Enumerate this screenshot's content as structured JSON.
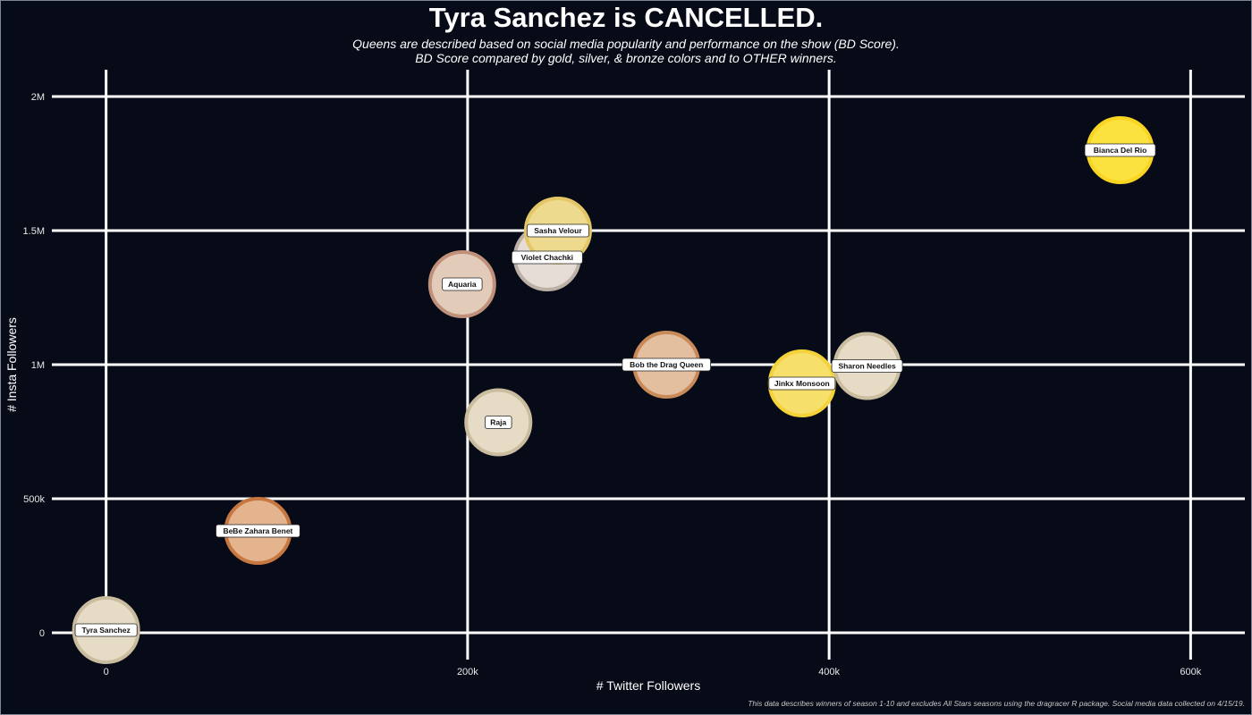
{
  "header": {
    "title": "Tyra Sanchez is CANCELLED.",
    "subtitle_line1": "Queens are described based on social media popularity and performance on the show (BD Score).",
    "subtitle_line2": "BD Score compared by gold, silver, & bronze colors and to OTHER winners."
  },
  "caption": "This data describes winners of season 1-10 and excludes All Stars seasons using the dragracer R package. Social media data collected on 4/15/19.",
  "colors": {
    "background": "#070a17",
    "grid": "#ffffff",
    "label_bg": "#ffffff",
    "label_text": "#111111"
  },
  "chart_data": {
    "type": "scatter",
    "title": "Tyra Sanchez is CANCELLED.",
    "xlabel": "# Twitter Followers",
    "ylabel": "# Insta Followers",
    "xlim": [
      -30000,
      630000
    ],
    "ylim": [
      -100000,
      2100000
    ],
    "xticks": [
      0,
      200000,
      400000,
      600000
    ],
    "xtick_labels": [
      "0",
      "200k",
      "400k",
      "600k"
    ],
    "yticks": [
      0,
      500000,
      1000000,
      1500000,
      2000000
    ],
    "ytick_labels": [
      "0",
      "500k",
      "1M",
      "1.5M",
      "2M"
    ],
    "grid": true,
    "points": [
      {
        "name": "Tyra Sanchez",
        "x": 0,
        "y": 10000,
        "fill": "#e6dcc6",
        "stroke": "#c9bc9f"
      },
      {
        "name": "BeBe Zahara Benet",
        "x": 84000,
        "y": 380000,
        "fill": "#e3b48e",
        "stroke": "#c7773f"
      },
      {
        "name": "Raja",
        "x": 217000,
        "y": 785000,
        "fill": "#e6dcc6",
        "stroke": "#c9bc9f"
      },
      {
        "name": "Aquaria",
        "x": 197000,
        "y": 1300000,
        "fill": "#e3cbb9",
        "stroke": "#c0917a"
      },
      {
        "name": "Violet Chachki",
        "x": 244000,
        "y": 1400000,
        "fill": "#e5dcd6",
        "stroke": "#bdb0a6"
      },
      {
        "name": "Sasha Velour",
        "x": 250000,
        "y": 1500000,
        "fill": "#eeda8e",
        "stroke": "#e3c766"
      },
      {
        "name": "Bob the Drag Queen",
        "x": 310000,
        "y": 1000000,
        "fill": "#e4bf9f",
        "stroke": "#c98a5a"
      },
      {
        "name": "Jinkx Monsoon",
        "x": 385000,
        "y": 930000,
        "fill": "#f6df6a",
        "stroke": "#f3d23a"
      },
      {
        "name": "Sharon Needles",
        "x": 421000,
        "y": 995000,
        "fill": "#e6dcc6",
        "stroke": "#c9bc9f"
      },
      {
        "name": "Bianca Del Rio",
        "x": 561000,
        "y": 1800000,
        "fill": "#fbe23e",
        "stroke": "#f9d422"
      }
    ]
  }
}
